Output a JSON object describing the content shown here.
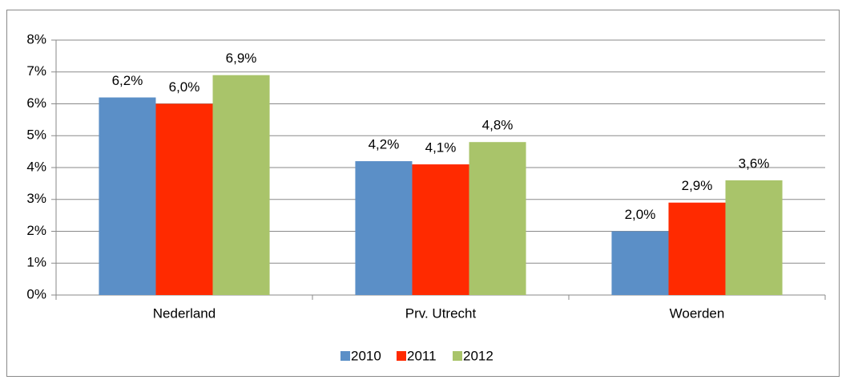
{
  "chart_data": {
    "type": "bar",
    "categories": [
      "Nederland",
      "Prv. Utrecht",
      "Woerden"
    ],
    "series": [
      {
        "name": "2010",
        "color": "#5b8fc7",
        "values": [
          6.2,
          4.2,
          2.0
        ],
        "value_labels": [
          "6,2%",
          "4,2%",
          "2,0%"
        ]
      },
      {
        "name": "2011",
        "color": "#ff2a00",
        "values": [
          6.0,
          4.1,
          2.9
        ],
        "value_labels": [
          "6,0%",
          "4,1%",
          "2,9%"
        ]
      },
      {
        "name": "2012",
        "color": "#a9c46a",
        "values": [
          6.9,
          4.8,
          3.6
        ],
        "value_labels": [
          "6,9%",
          "4,8%",
          "3,6%"
        ]
      }
    ],
    "ylim": [
      0,
      8
    ],
    "yticks": [
      {
        "value": 0,
        "label": "0%"
      },
      {
        "value": 1,
        "label": "1%"
      },
      {
        "value": 2,
        "label": "2%"
      },
      {
        "value": 3,
        "label": "3%"
      },
      {
        "value": 4,
        "label": "4%"
      },
      {
        "value": 5,
        "label": "5%"
      },
      {
        "value": 6,
        "label": "6%"
      },
      {
        "value": 7,
        "label": "7%"
      },
      {
        "value": 8,
        "label": "8%"
      }
    ],
    "grid": true,
    "legend": "bottom"
  }
}
